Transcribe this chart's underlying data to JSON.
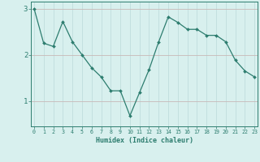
{
  "x": [
    0,
    1,
    2,
    3,
    4,
    5,
    6,
    7,
    8,
    9,
    10,
    11,
    12,
    13,
    14,
    15,
    16,
    17,
    18,
    19,
    20,
    21,
    22,
    23
  ],
  "y": [
    3.0,
    2.25,
    2.18,
    2.72,
    2.28,
    2.0,
    1.72,
    1.52,
    1.22,
    1.22,
    0.68,
    1.18,
    1.68,
    2.28,
    2.82,
    2.7,
    2.55,
    2.55,
    2.42,
    2.42,
    2.28,
    1.88,
    1.65,
    1.52
  ],
  "line_color": "#2d7d6f",
  "bg_color": "#d8f0ee",
  "grid_color_v": "#c0dedd",
  "grid_color_h": "#c8b8b8",
  "xlabel": "Humidex (Indice chaleur)",
  "yticks": [
    1,
    2,
    3
  ],
  "xlim": [
    -0.3,
    23.3
  ],
  "ylim": [
    0.45,
    3.15
  ]
}
